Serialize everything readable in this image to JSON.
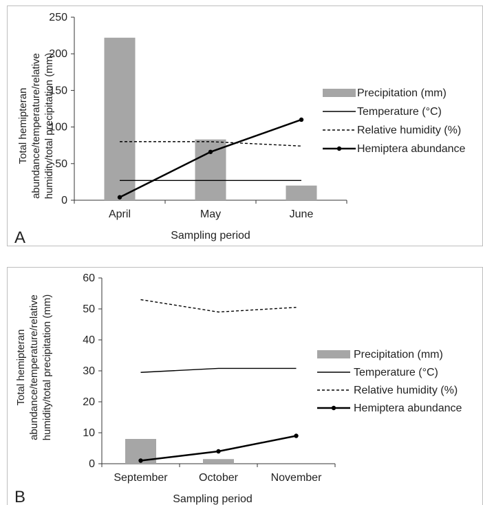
{
  "chart_data": [
    {
      "type": "bar",
      "panel_label": "A",
      "categories": [
        "April",
        "May",
        "June"
      ],
      "xlabel": "Sampling period",
      "ylabel_lines": [
        "Total hemipteran",
        "abundance/temperature/relative",
        "humidity/total precipitation (mm)"
      ],
      "ylim": [
        0,
        250
      ],
      "yticks": [
        0,
        50,
        100,
        150,
        200,
        250
      ],
      "grid": false,
      "legend_position": "right",
      "series": [
        {
          "name": "Precipitation (mm)",
          "kind": "bar",
          "color": "#a6a6a6",
          "values": [
            222,
            83,
            20
          ]
        },
        {
          "name": "Temperature (°C)",
          "kind": "line",
          "style": "solid",
          "color": "#000000",
          "values": [
            27,
            27,
            27
          ]
        },
        {
          "name": "Relative humidity (%)",
          "kind": "line",
          "style": "dashed",
          "color": "#000000",
          "values": [
            80,
            80,
            74
          ]
        },
        {
          "name": "Hemiptera abundance",
          "kind": "line-marker",
          "style": "thick",
          "color": "#000000",
          "values": [
            4,
            66,
            110
          ]
        }
      ]
    },
    {
      "type": "bar",
      "panel_label": "B",
      "categories": [
        "September",
        "October",
        "November"
      ],
      "xlabel": "Sampling period",
      "ylabel_lines": [
        "Total hemipteran",
        "abundance/temperature/relative",
        "humidity/total precipitation (mm)"
      ],
      "ylim": [
        0,
        60
      ],
      "yticks": [
        0,
        10,
        20,
        30,
        40,
        50,
        60
      ],
      "grid": false,
      "legend_position": "right",
      "series": [
        {
          "name": "Precipitation (mm)",
          "kind": "bar",
          "color": "#a6a6a6",
          "values": [
            8,
            1.5,
            0
          ]
        },
        {
          "name": "Temperature (°C)",
          "kind": "line",
          "style": "solid",
          "color": "#000000",
          "values": [
            29.5,
            30.8,
            30.8
          ]
        },
        {
          "name": "Relative humidity (%)",
          "kind": "line",
          "style": "dashed",
          "color": "#000000",
          "values": [
            53,
            49,
            50.5
          ]
        },
        {
          "name": "Hemiptera abundance",
          "kind": "line-marker",
          "style": "thick",
          "color": "#000000",
          "values": [
            1,
            4,
            9
          ]
        }
      ]
    }
  ]
}
